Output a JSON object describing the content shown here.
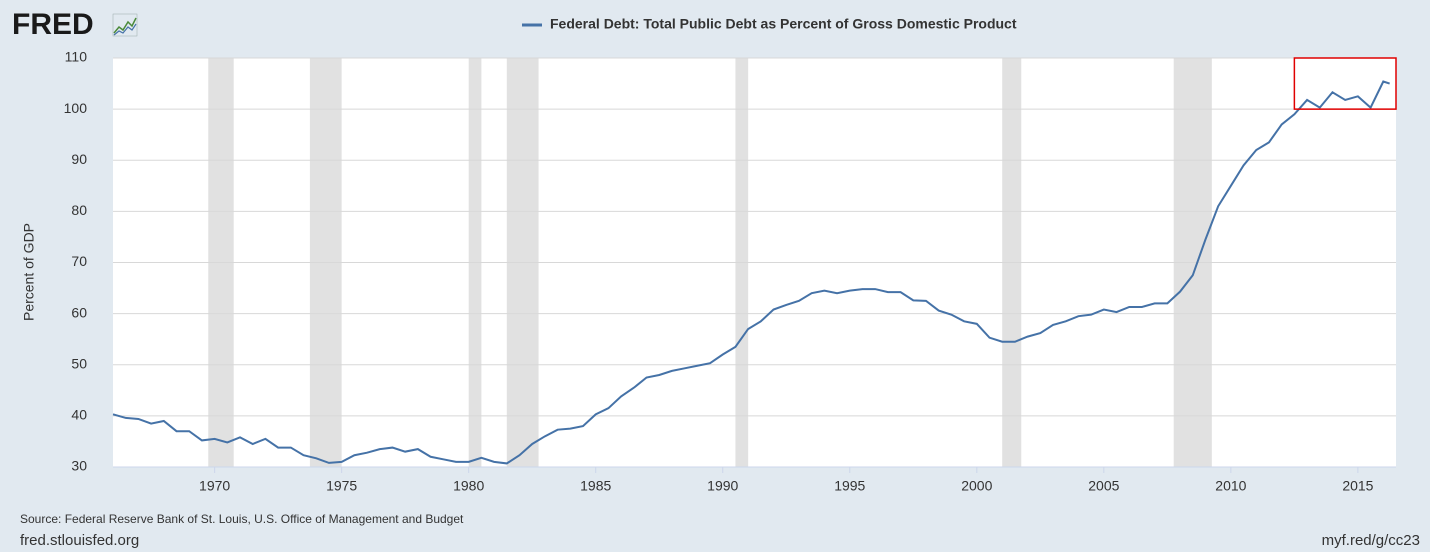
{
  "brand": "FRED",
  "chart_data": {
    "type": "line",
    "series": [
      {
        "name": "Federal Debt: Total Public Debt as Percent of Gross Domestic Product",
        "color": "#4572a7",
        "values": [
          40.3,
          39.6,
          39.4,
          38.5,
          39.0,
          37.0,
          37.0,
          35.2,
          35.5,
          34.8,
          35.8,
          34.5,
          35.5,
          33.8,
          33.8,
          32.3,
          31.7,
          30.8,
          31.0,
          32.3,
          32.8,
          33.5,
          33.8,
          33.0,
          33.5,
          32.0,
          31.5,
          31.0,
          31.0,
          31.8,
          31.0,
          30.7,
          32.3,
          34.5,
          36.0,
          37.3,
          37.5,
          38.0,
          40.3,
          41.5,
          43.8,
          45.5,
          47.5,
          48.0,
          48.8,
          49.3,
          49.8,
          50.3,
          52.0,
          53.5,
          57.0,
          58.5,
          60.8,
          61.7,
          62.5,
          64.0,
          64.5,
          64.0,
          64.5,
          64.8,
          64.8,
          64.2,
          64.2,
          62.6,
          62.5,
          60.6,
          59.8,
          58.5,
          58.0,
          55.3,
          54.5,
          54.5,
          55.5,
          56.2,
          57.8,
          58.5,
          59.5,
          59.8,
          60.8,
          60.3,
          61.3,
          61.3,
          62.0,
          62.0,
          64.3,
          67.5,
          74.5,
          81.0,
          85.0,
          89.0,
          92.0,
          93.5,
          97.0,
          99.0,
          101.8,
          100.3,
          103.3,
          101.8,
          102.5,
          100.3,
          105.4,
          105.0
        ]
      }
    ],
    "x": [
      1966,
      1966.5,
      1967,
      1967.5,
      1968,
      1968.5,
      1969,
      1969.5,
      1970,
      1970.5,
      1971,
      1971.5,
      1972,
      1972.5,
      1973,
      1973.5,
      1974,
      1974.5,
      1975,
      1975.5,
      1976,
      1976.5,
      1977,
      1977.5,
      1978,
      1978.5,
      1979,
      1979.5,
      1980,
      1980.5,
      1981,
      1981.5,
      1982,
      1982.5,
      1983,
      1983.5,
      1984,
      1984.5,
      1985,
      1985.5,
      1986,
      1986.5,
      1987,
      1987.5,
      1988,
      1988.5,
      1989,
      1989.5,
      1990,
      1990.5,
      1991,
      1991.5,
      1992,
      1992.5,
      1993,
      1993.5,
      1994,
      1994.5,
      1995,
      1995.5,
      1996,
      1996.5,
      1997,
      1997.5,
      1998,
      1998.5,
      1999,
      1999.5,
      2000,
      2000.5,
      2001,
      2001.5,
      2002,
      2002.5,
      2003,
      2003.5,
      2004,
      2004.5,
      2005,
      2005.5,
      2006,
      2006.5,
      2007,
      2007.5,
      2008,
      2008.5,
      2009,
      2009.5,
      2010,
      2010.5,
      2011,
      2011.5,
      2012,
      2012.5,
      2013,
      2013.5,
      2014,
      2014.5,
      2015,
      2015.5,
      2016,
      2016.25
    ],
    "xlim": [
      1966,
      2016.5
    ],
    "xticks": [
      1970,
      1975,
      1980,
      1985,
      1990,
      1995,
      2000,
      2005,
      2010,
      2015
    ],
    "ylim": [
      30,
      110
    ],
    "yticks": [
      30,
      40,
      50,
      60,
      70,
      80,
      90,
      100,
      110
    ],
    "ylabel": "Percent of GDP",
    "grid": true,
    "recessions": [
      [
        1969.75,
        1970.75
      ],
      [
        1973.75,
        1975.0
      ],
      [
        1980.0,
        1980.5
      ],
      [
        1981.5,
        1982.75
      ],
      [
        1990.5,
        1991.0
      ],
      [
        2001.0,
        2001.75
      ],
      [
        2007.75,
        2009.25
      ]
    ],
    "recession_color": "#e1e1e1",
    "highlight": {
      "xlim": [
        2012.5,
        2016.5
      ],
      "ylim": [
        100,
        110
      ],
      "color": "#e00000"
    }
  },
  "footer": {
    "source": "Source: Federal Reserve Bank of St. Louis, U.S. Office of Management and Budget",
    "site": "fred.stlouisfed.org",
    "link": "myf.red/g/cc23"
  }
}
